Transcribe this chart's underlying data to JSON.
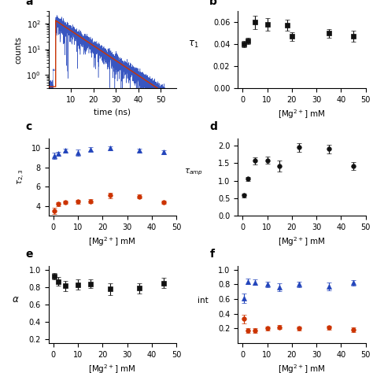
{
  "panel_a": {
    "label": "a",
    "xlabel": "time (ns)",
    "ylabel": "counts",
    "xrange": [
      0,
      57
    ],
    "decay_start": 3.2,
    "peak": 130,
    "noise_floor": 0.35,
    "tau": 7.5,
    "fit_color": "#cc3300",
    "data_color": "#2244bb",
    "ylim_low": 0.3,
    "ylim_high": 300
  },
  "panel_b": {
    "label": "b",
    "xlabel": "[Mg$^{2+}$] mM",
    "ylabel": "$\\tau_1$",
    "x": [
      0.5,
      2,
      5,
      10,
      18,
      20,
      35,
      45
    ],
    "y": [
      0.04,
      0.043,
      0.06,
      0.058,
      0.057,
      0.047,
      0.05,
      0.047
    ],
    "yerr": [
      0.003,
      0.003,
      0.006,
      0.006,
      0.005,
      0.004,
      0.004,
      0.005
    ],
    "color": "#111111",
    "ylim": [
      0.0,
      0.07
    ],
    "xlim": [
      -2,
      50
    ],
    "yticks": [
      0.0,
      0.02,
      0.04,
      0.06
    ],
    "xticks": [
      0,
      10,
      20,
      30,
      40,
      50
    ]
  },
  "panel_c": {
    "label": "c",
    "xlabel": "[Mg$^{2+}$] mM",
    "ylabel": "$\\tau_{2,3}$",
    "x_blue": [
      0.5,
      2,
      5,
      10,
      15,
      23,
      35,
      45
    ],
    "y_blue": [
      9.2,
      9.45,
      9.75,
      9.55,
      9.9,
      10.0,
      9.75,
      9.6
    ],
    "yerr_blue": [
      0.3,
      0.2,
      0.2,
      0.3,
      0.2,
      0.2,
      0.2,
      0.2
    ],
    "x_red": [
      0.5,
      2,
      5,
      10,
      15,
      23,
      35,
      45
    ],
    "y_red": [
      3.5,
      4.2,
      4.4,
      4.45,
      4.5,
      5.1,
      5.0,
      4.4
    ],
    "yerr_red": [
      0.3,
      0.2,
      0.2,
      0.2,
      0.2,
      0.25,
      0.2,
      0.2
    ],
    "color_blue": "#2244bb",
    "color_red": "#cc3300",
    "ylim": [
      3,
      11
    ],
    "xlim": [
      -2,
      50
    ],
    "yticks": [
      4,
      6,
      8,
      10
    ],
    "xticks": [
      0,
      10,
      20,
      30,
      40,
      50
    ]
  },
  "panel_d": {
    "label": "d",
    "xlabel": "[Mg$^{2+}$] mM",
    "ylabel": "$\\tau_{amp}$",
    "x": [
      0.5,
      2,
      5,
      10,
      15,
      23,
      35,
      45
    ],
    "y": [
      0.58,
      1.05,
      1.57,
      1.58,
      1.42,
      1.95,
      1.9,
      1.42
    ],
    "yerr": [
      0.05,
      0.06,
      0.1,
      0.1,
      0.15,
      0.12,
      0.12,
      0.12
    ],
    "color": "#111111",
    "ylim": [
      0.0,
      2.2
    ],
    "xlim": [
      -2,
      50
    ],
    "yticks": [
      0.0,
      0.5,
      1.0,
      1.5,
      2.0
    ],
    "xticks": [
      0,
      10,
      20,
      30,
      40,
      50
    ]
  },
  "panel_e": {
    "label": "e",
    "xlabel": "[Mg$^{2+}$] mM",
    "ylabel": "$\\alpha$",
    "x": [
      0.5,
      2,
      5,
      10,
      15,
      23,
      35,
      45
    ],
    "y": [
      0.93,
      0.87,
      0.82,
      0.83,
      0.84,
      0.78,
      0.79,
      0.85
    ],
    "yerr": [
      0.04,
      0.05,
      0.06,
      0.06,
      0.05,
      0.07,
      0.06,
      0.06
    ],
    "color": "#111111",
    "ylim": [
      0.15,
      1.05
    ],
    "xlim": [
      -2,
      50
    ],
    "yticks": [
      0.2,
      0.4,
      0.6,
      0.8,
      1.0
    ],
    "xticks": [
      0,
      10,
      20,
      30,
      40,
      50
    ]
  },
  "panel_f": {
    "label": "f",
    "xlabel": "[Mg$^{2+}$] mM",
    "ylabel": "int",
    "x_blue": [
      0.5,
      2,
      5,
      10,
      15,
      23,
      35,
      45
    ],
    "y_blue": [
      0.61,
      0.84,
      0.83,
      0.8,
      0.76,
      0.8,
      0.77,
      0.82
    ],
    "yerr_blue": [
      0.06,
      0.04,
      0.04,
      0.04,
      0.05,
      0.04,
      0.05,
      0.04
    ],
    "x_red": [
      0.5,
      2,
      5,
      10,
      15,
      23,
      35,
      45
    ],
    "y_red": [
      0.33,
      0.17,
      0.17,
      0.2,
      0.22,
      0.2,
      0.21,
      0.18
    ],
    "yerr_red": [
      0.06,
      0.03,
      0.03,
      0.03,
      0.03,
      0.03,
      0.03,
      0.03
    ],
    "color_blue": "#2244bb",
    "color_red": "#cc3300",
    "ylim": [
      0.0,
      1.05
    ],
    "xlim": [
      -2,
      50
    ],
    "yticks": [
      0.2,
      0.4,
      0.6,
      0.8,
      1.0
    ],
    "xticks": [
      0,
      10,
      20,
      30,
      40,
      50
    ]
  },
  "label_fontsize": 10,
  "tick_fontsize": 7,
  "axis_fontsize": 7.5,
  "marker_size": 4,
  "capsize": 2,
  "elinewidth": 0.8,
  "linewidth": 0.8
}
